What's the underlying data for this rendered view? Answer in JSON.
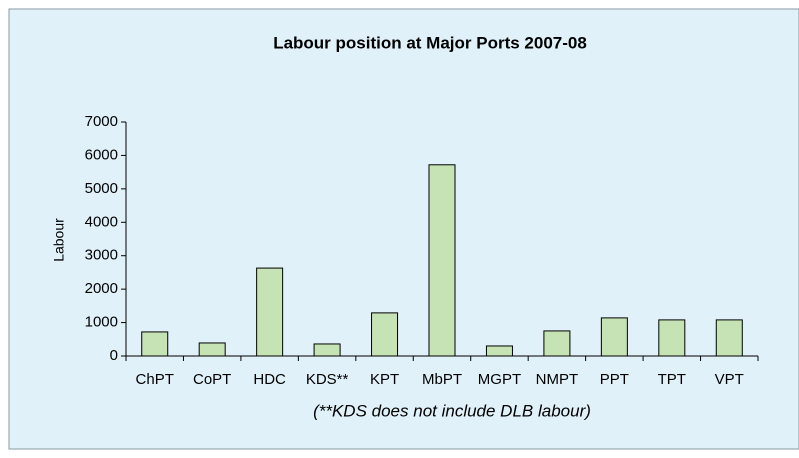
{
  "chart_data": {
    "type": "bar",
    "title": "Labour position at Major Ports 2007-08",
    "y_label": "Labour",
    "note": "(**KDS does not include DLB labour)",
    "categories": [
      "ChPT",
      "CoPT",
      "HDC",
      "KDS**",
      "KPT",
      "MbPT",
      "MGPT",
      "NMPT",
      "PPT",
      "TPT",
      "VPT"
    ],
    "values": [
      720,
      390,
      2630,
      360,
      1290,
      5720,
      300,
      750,
      1140,
      1080,
      1080
    ],
    "color": "#c6e3b5",
    "ylim": [
      0,
      7000
    ],
    "yticks": [
      0,
      1000,
      2000,
      3000,
      4000,
      5000,
      6000,
      7000
    ],
    "grid": false
  }
}
